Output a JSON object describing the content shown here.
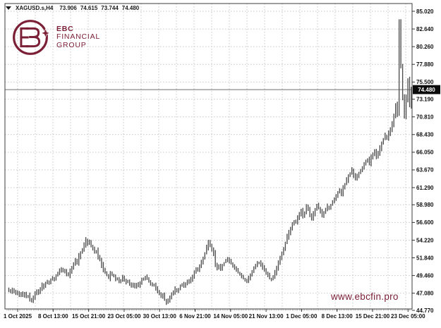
{
  "title_bar": {
    "symbol": "XAGUSD.s,H4",
    "open": "73.906",
    "high": "74.615",
    "low": "73.744",
    "close": "74.480"
  },
  "logo": {
    "line1": "EBC",
    "line2": "FINANCIAL",
    "line3": "GROUP",
    "color": "#7b2037"
  },
  "watermark": {
    "text": "www.ebcfin.pro",
    "color": "#7b2037"
  },
  "price_tag": {
    "value": "74.480",
    "bg": "#0c0c0c",
    "fg": "#ffffff"
  },
  "colors": {
    "bars": "#4d4d4d",
    "grid": "#c7c7c7",
    "frame": "#3d3d3d",
    "axis_text": "#111111",
    "plot_bg": "#ffffff",
    "outer_bg": "#d9d7d2",
    "price_line": "#5a5a5a"
  },
  "chart_data": {
    "type": "candlestick",
    "symbol": "XAGUSD.s",
    "timeframe": "H4",
    "title": "XAGUSD.s,H4",
    "x_range": [
      "1 Oct 2025",
      "23 Dec 2025 05:00"
    ],
    "ylim": [
      44.77,
      85.02
    ],
    "grid": "dotted",
    "current_price": 74.48,
    "last_candle": {
      "open": 73.906,
      "high": 74.615,
      "low": 73.744,
      "close": 74.48
    },
    "y_tick_labels": [
      "85.020",
      "82.640",
      "80.260",
      "77.880",
      "75.500",
      "73.190",
      "70.810",
      "68.430",
      "66.050",
      "63.670",
      "61.290",
      "58.980",
      "56.600",
      "54.220",
      "51.840",
      "49.460",
      "47.080",
      "44.770"
    ],
    "x_tick_labels": [
      "1 Oct 2025",
      "8 Oct 13:00",
      "15 Oct 21:00",
      "23 Oct 05:00",
      "30 Oct 13:00",
      "6 Nov 21:00",
      "14 Nov 05:00",
      "21 Nov 13:00",
      "1 Dec 05:00",
      "8 Dec 13:00",
      "15 Dec 21:00",
      "23 Dec 05:00"
    ],
    "price_path": [
      47.3,
      47.55,
      47.2,
      47.6,
      47.35,
      47.0,
      47.25,
      46.85,
      47.1,
      46.7,
      46.95,
      46.5,
      46.75,
      46.2,
      46.0,
      46.55,
      47.0,
      47.4,
      47.15,
      47.7,
      48.2,
      47.9,
      48.35,
      48.7,
      48.45,
      48.9,
      49.2,
      48.95,
      49.5,
      49.8,
      50.1,
      50.35,
      49.95,
      50.2,
      49.7,
      49.45,
      50.0,
      50.4,
      51.0,
      51.5,
      51.2,
      52.0,
      52.5,
      53.0,
      53.6,
      54.25,
      53.8,
      54.1,
      53.5,
      53.15,
      52.5,
      52.8,
      52.0,
      51.6,
      50.9,
      50.3,
      49.9,
      49.5,
      49.15,
      49.9,
      49.6,
      49.3,
      48.9,
      49.15,
      48.65,
      48.9,
      49.3,
      48.85,
      48.5,
      48.75,
      48.35,
      48.1,
      48.4,
      47.95,
      48.35,
      48.0,
      48.55,
      48.9,
      49.1,
      49.35,
      49.05,
      48.75,
      48.4,
      48.05,
      48.3,
      47.8,
      47.35,
      47.0,
      46.55,
      46.8,
      46.2,
      45.75,
      46.15,
      46.5,
      46.9,
      47.2,
      47.65,
      47.3,
      47.7,
      48.05,
      48.3,
      48.0,
      48.45,
      48.8,
      48.55,
      48.95,
      49.4,
      49.9,
      50.3,
      50.1,
      50.8,
      51.3,
      51.9,
      52.5,
      53.3,
      54.0,
      53.4,
      53.0,
      52.3,
      51.0,
      50.4,
      50.7,
      50.35,
      50.9,
      51.2,
      51.45,
      51.8,
      51.4,
      51.1,
      50.8,
      50.45,
      50.2,
      49.9,
      49.6,
      49.3,
      49.05,
      48.8,
      48.65,
      49.1,
      49.6,
      50.0,
      50.4,
      50.75,
      51.1,
      51.25,
      50.9,
      50.55,
      50.2,
      49.8,
      49.5,
      49.1,
      48.9,
      49.4,
      49.9,
      50.5,
      51.1,
      51.7,
      52.4,
      53.1,
      53.8,
      54.6,
      55.3,
      55.9,
      56.4,
      56.8,
      56.5,
      57.2,
      57.7,
      58.2,
      57.4,
      58.0,
      58.7,
      58.3,
      57.6,
      57.1,
      57.8,
      58.4,
      58.9,
      58.5,
      58.0,
      57.4,
      57.9,
      58.3,
      58.8,
      58.55,
      59.0,
      59.3,
      59.7,
      60.2,
      60.7,
      61.0,
      60.5,
      61.3,
      61.8,
      62.3,
      62.8,
      63.2,
      63.7,
      63.0,
      62.4,
      62.9,
      63.3,
      63.6,
      64.0,
      64.4,
      64.8,
      65.1,
      64.6,
      65.3,
      65.8,
      66.3,
      65.4,
      65.9,
      66.6,
      67.2,
      67.8,
      68.3,
      68.0,
      68.6,
      69.2,
      69.9,
      70.9,
      72.4,
      71.2,
      83.6,
      77.8,
      73.5,
      71.0,
      73.3,
      75.7,
      72.4,
      74.48
    ]
  }
}
